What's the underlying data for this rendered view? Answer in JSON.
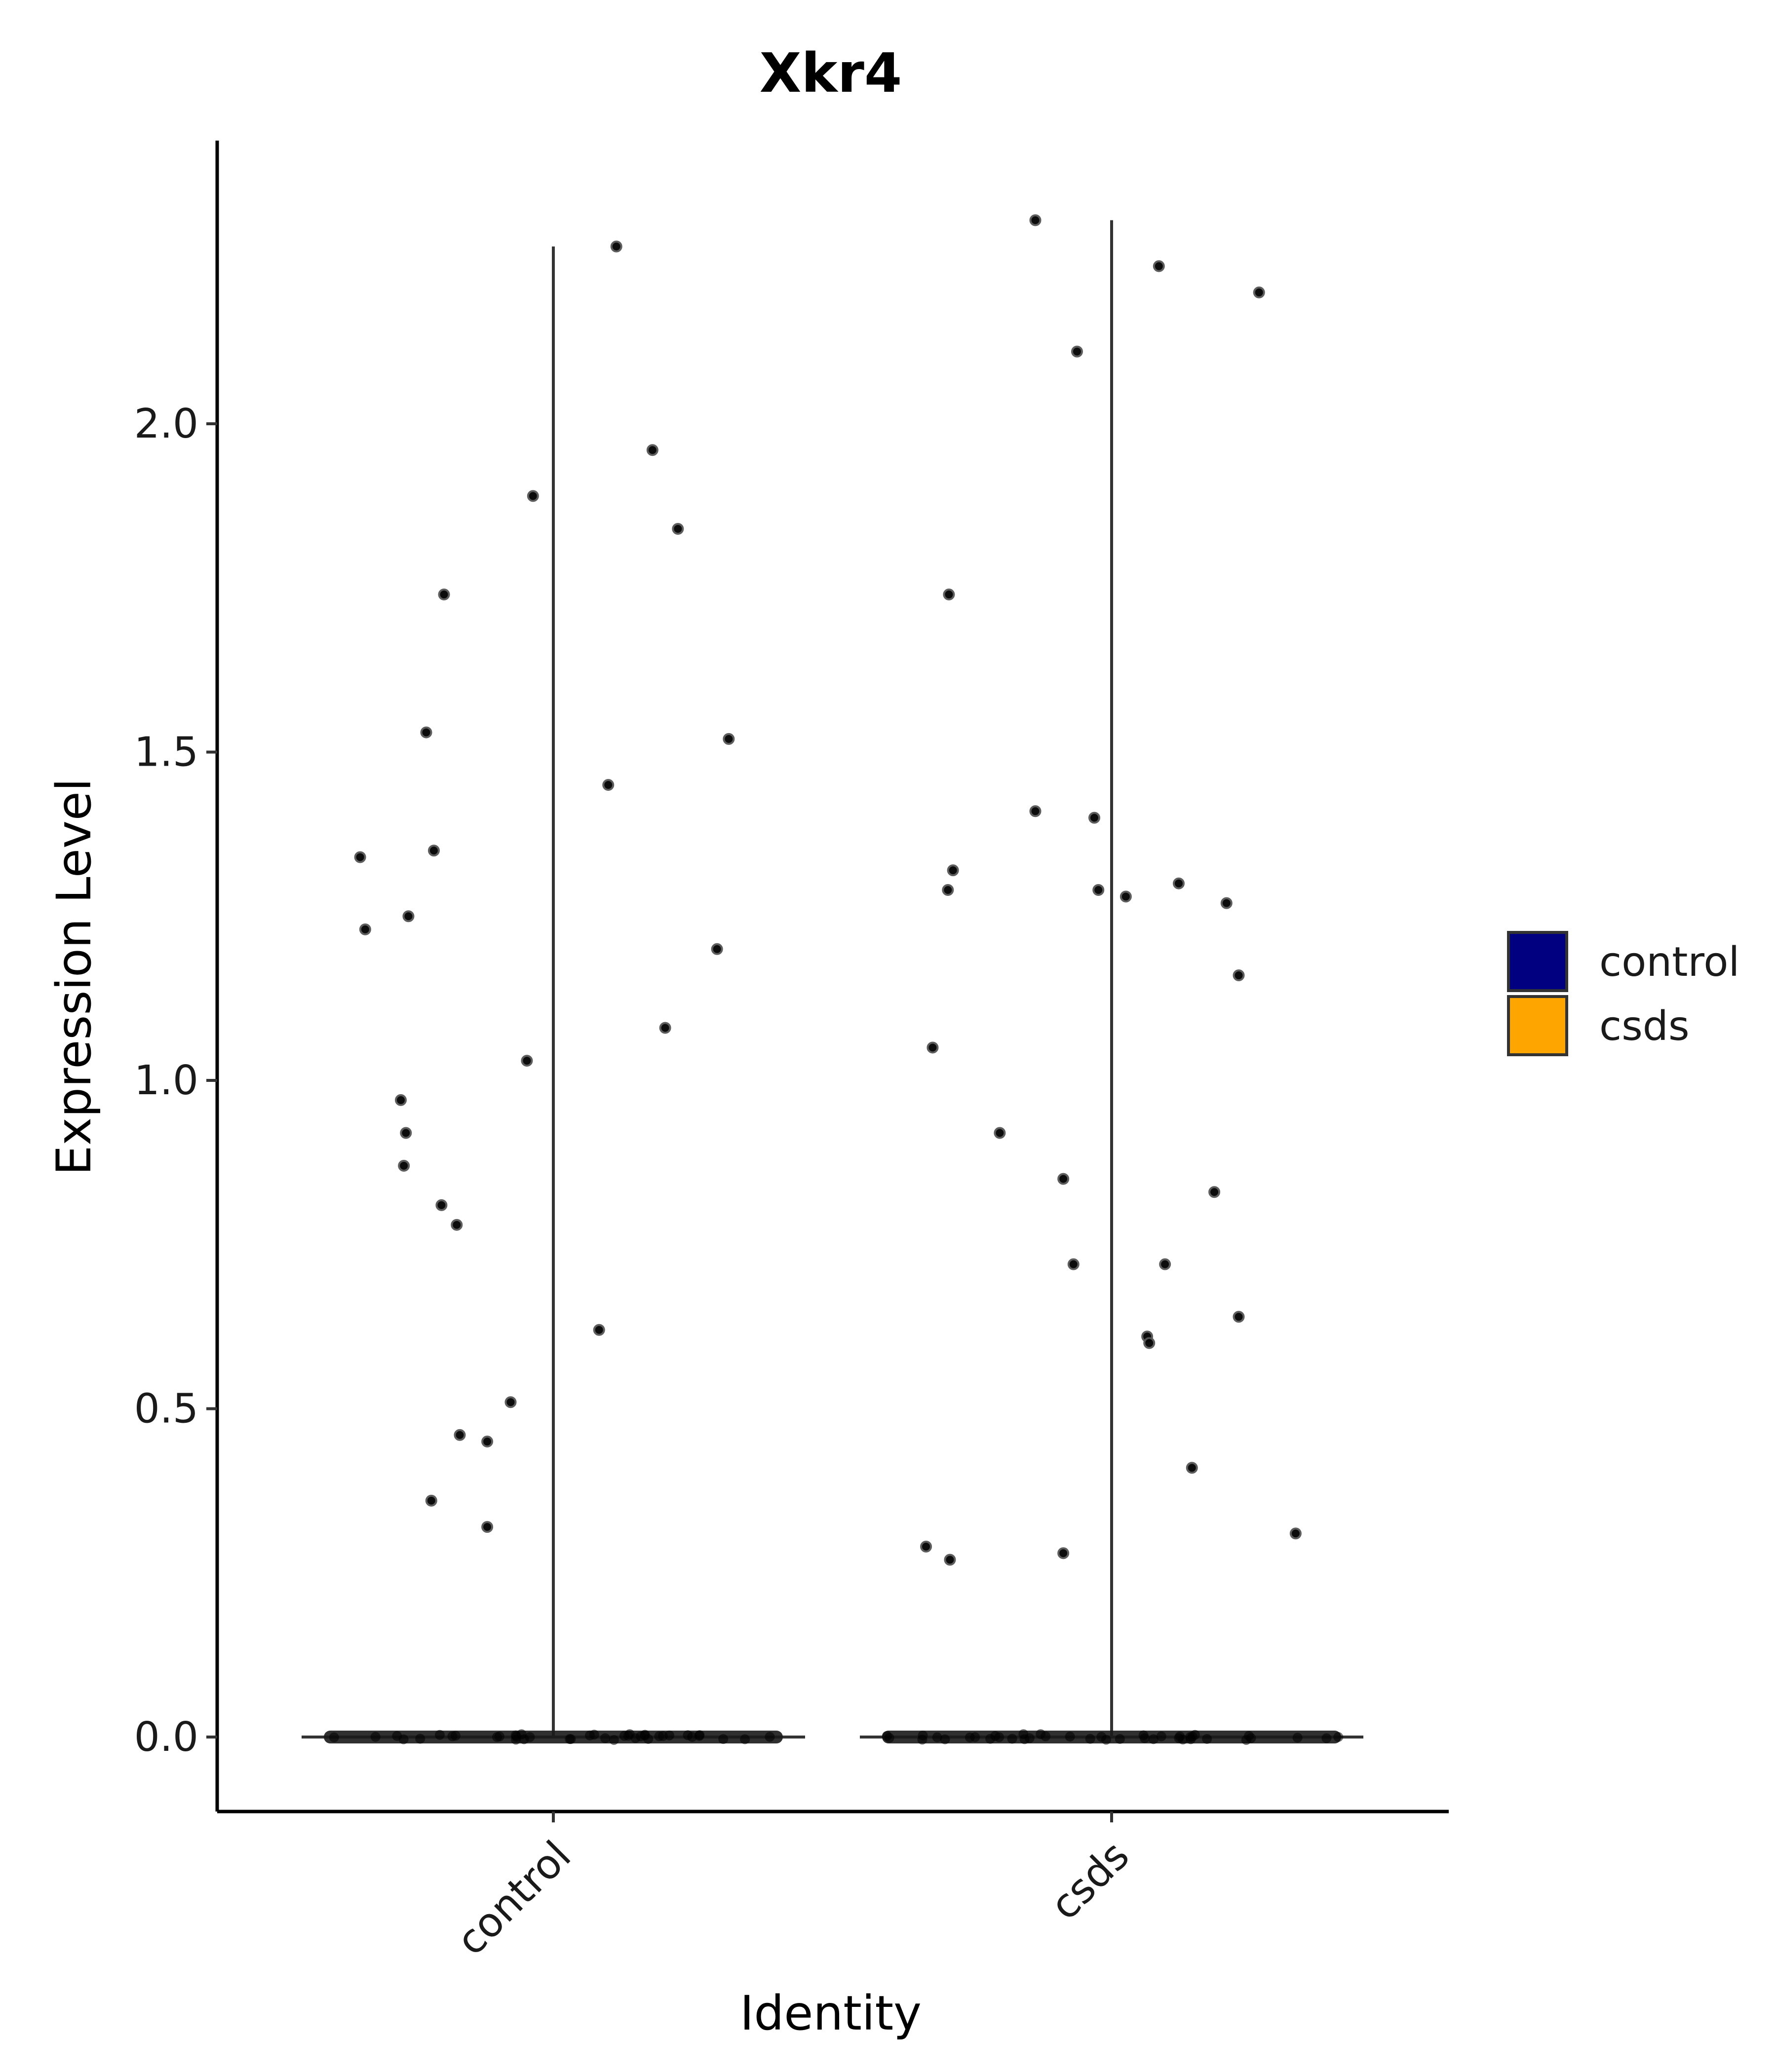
{
  "chart_data": {
    "type": "violin",
    "title": "Xkr4",
    "xlabel": "Identity",
    "ylabel": "Expression Level",
    "ylim": [
      -0.115,
      2.39
    ],
    "yticks": [
      "0.0",
      "0.5",
      "1.0",
      "1.5",
      "2.0"
    ],
    "yticks_values": [
      0,
      0.5,
      1.0,
      1.5,
      2.0
    ],
    "grid": false,
    "legend": {
      "position": "right",
      "title": "",
      "entries": [
        {
          "label": "control",
          "color": "#000080"
        },
        {
          "label": "csds",
          "color": "#FFA500"
        }
      ]
    },
    "categories": [
      "control",
      "csds"
    ],
    "series": [
      {
        "name": "control",
        "color": "#000080",
        "violin_max": 2.27,
        "zero_cluster": true,
        "points": [
          {
            "x": -0.38,
            "y": 1.34
          },
          {
            "x": -0.37,
            "y": 1.23
          },
          {
            "x": -0.3,
            "y": 0.97
          },
          {
            "x": -0.294,
            "y": 0.87
          },
          {
            "x": -0.29,
            "y": 0.92
          },
          {
            "x": -0.285,
            "y": 1.25
          },
          {
            "x": -0.25,
            "y": 1.53
          },
          {
            "x": -0.24,
            "y": 0.36
          },
          {
            "x": -0.235,
            "y": 1.35
          },
          {
            "x": -0.22,
            "y": 0.81
          },
          {
            "x": -0.215,
            "y": 1.74
          },
          {
            "x": -0.19,
            "y": 0.78
          },
          {
            "x": -0.184,
            "y": 0.46
          },
          {
            "x": -0.13,
            "y": 0.45
          },
          {
            "x": -0.13,
            "y": 0.32
          },
          {
            "x": -0.084,
            "y": 0.51
          },
          {
            "x": -0.052,
            "y": 1.03
          },
          {
            "x": -0.04,
            "y": 1.89
          },
          {
            "x": 0.09,
            "y": 0.62
          },
          {
            "x": 0.108,
            "y": 1.45
          },
          {
            "x": 0.124,
            "y": 2.27
          },
          {
            "x": 0.195,
            "y": 1.96
          },
          {
            "x": 0.22,
            "y": 1.08
          },
          {
            "x": 0.245,
            "y": 1.84
          },
          {
            "x": 0.322,
            "y": 1.2
          },
          {
            "x": 0.345,
            "y": 1.52
          }
        ]
      },
      {
        "name": "csds",
        "color": "#FFA500",
        "violin_max": 2.31,
        "zero_cluster": true,
        "points": [
          {
            "x": -0.365,
            "y": 0.29
          },
          {
            "x": -0.352,
            "y": 1.05
          },
          {
            "x": -0.322,
            "y": 1.29
          },
          {
            "x": -0.32,
            "y": 1.74
          },
          {
            "x": -0.318,
            "y": 0.27
          },
          {
            "x": -0.312,
            "y": 1.32
          },
          {
            "x": -0.22,
            "y": 0.92
          },
          {
            "x": -0.15,
            "y": 1.41
          },
          {
            "x": -0.15,
            "y": 2.31
          },
          {
            "x": -0.095,
            "y": 0.28
          },
          {
            "x": -0.095,
            "y": 0.85
          },
          {
            "x": -0.075,
            "y": 0.72
          },
          {
            "x": -0.068,
            "y": 2.11
          },
          {
            "x": -0.034,
            "y": 1.4
          },
          {
            "x": -0.026,
            "y": 1.29
          },
          {
            "x": 0.028,
            "y": 1.28
          },
          {
            "x": 0.07,
            "y": 0.61
          },
          {
            "x": 0.074,
            "y": 0.6
          },
          {
            "x": 0.093,
            "y": 2.24
          },
          {
            "x": 0.105,
            "y": 0.72
          },
          {
            "x": 0.132,
            "y": 1.3
          },
          {
            "x": 0.158,
            "y": 0.41
          },
          {
            "x": 0.202,
            "y": 0.83
          },
          {
            "x": 0.226,
            "y": 1.27
          },
          {
            "x": 0.25,
            "y": 0.64
          },
          {
            "x": 0.25,
            "y": 1.16
          },
          {
            "x": 0.29,
            "y": 2.2
          },
          {
            "x": 0.362,
            "y": 0.31
          }
        ]
      }
    ]
  }
}
